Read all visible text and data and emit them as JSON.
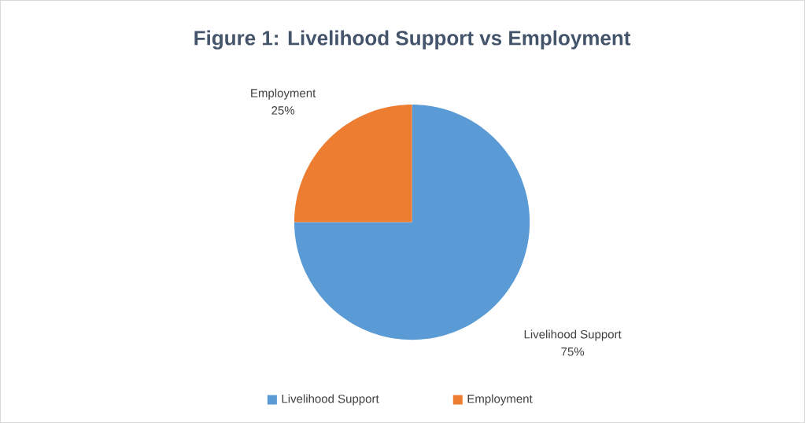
{
  "chart_data": {
    "type": "pie",
    "title": "Figure 1: Livelihood Support vs Employment",
    "categories": [
      "Livelihood Support",
      "Employment"
    ],
    "values": [
      75,
      25
    ],
    "value_labels": [
      "75%",
      "25%"
    ],
    "colors": [
      "#5b9bd5",
      "#ed7d31"
    ],
    "legend": "bottom"
  }
}
